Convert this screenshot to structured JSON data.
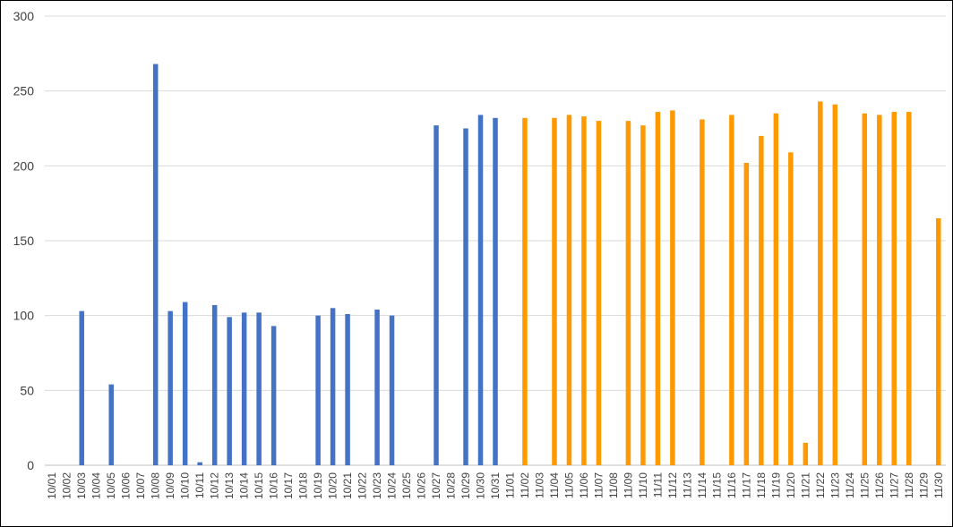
{
  "chart_data": {
    "type": "bar",
    "title": "",
    "xlabel": "",
    "ylabel": "",
    "ylim": [
      0,
      300
    ],
    "yticks": [
      "0",
      "50",
      "100",
      "150",
      "200",
      "250",
      "300"
    ],
    "grid": true,
    "legend": "none",
    "categories": [
      "10/01",
      "10/02",
      "10/03",
      "10/04",
      "10/05",
      "10/06",
      "10/07",
      "10/08",
      "10/09",
      "10/10",
      "10/11",
      "10/12",
      "10/13",
      "10/14",
      "10/15",
      "10/16",
      "10/17",
      "10/18",
      "10/19",
      "10/20",
      "10/21",
      "10/22",
      "10/23",
      "10/24",
      "10/25",
      "10/26",
      "10/27",
      "10/28",
      "10/29",
      "10/30",
      "10/31",
      "11/01",
      "11/02",
      "11/03",
      "11/04",
      "11/05",
      "11/06",
      "11/07",
      "11/08",
      "11/09",
      "11/10",
      "11/11",
      "11/12",
      "11/13",
      "11/14",
      "11/15",
      "11/16",
      "11/17",
      "11/18",
      "11/19",
      "11/20",
      "11/21",
      "11/22",
      "11/23",
      "11/24",
      "11/25",
      "11/26",
      "11/27",
      "11/28",
      "11/29",
      "11/30"
    ],
    "series": [
      {
        "color": "#4472c4",
        "values": [
          null,
          null,
          103,
          null,
          54,
          null,
          null,
          268,
          103,
          109,
          2,
          107,
          99,
          102,
          102,
          93,
          null,
          null,
          100,
          105,
          101,
          null,
          104,
          100,
          null,
          null,
          227,
          null,
          225,
          234,
          232,
          null,
          null,
          null,
          null,
          null,
          null,
          null,
          null,
          null,
          null,
          null,
          null,
          null,
          null,
          null,
          null,
          null,
          null,
          null,
          null,
          null,
          null,
          null,
          null,
          null,
          null,
          null,
          null,
          null,
          null
        ]
      },
      {
        "color": "#ff9900",
        "values": [
          null,
          null,
          null,
          null,
          null,
          null,
          null,
          null,
          null,
          null,
          null,
          null,
          null,
          null,
          null,
          null,
          null,
          null,
          null,
          null,
          null,
          null,
          null,
          null,
          null,
          null,
          null,
          null,
          null,
          null,
          null,
          null,
          232,
          null,
          232,
          234,
          233,
          230,
          null,
          230,
          227,
          236,
          237,
          null,
          231,
          null,
          234,
          202,
          220,
          235,
          209,
          15,
          243,
          241,
          null,
          235,
          234,
          236,
          236,
          null,
          165
        ]
      }
    ]
  }
}
